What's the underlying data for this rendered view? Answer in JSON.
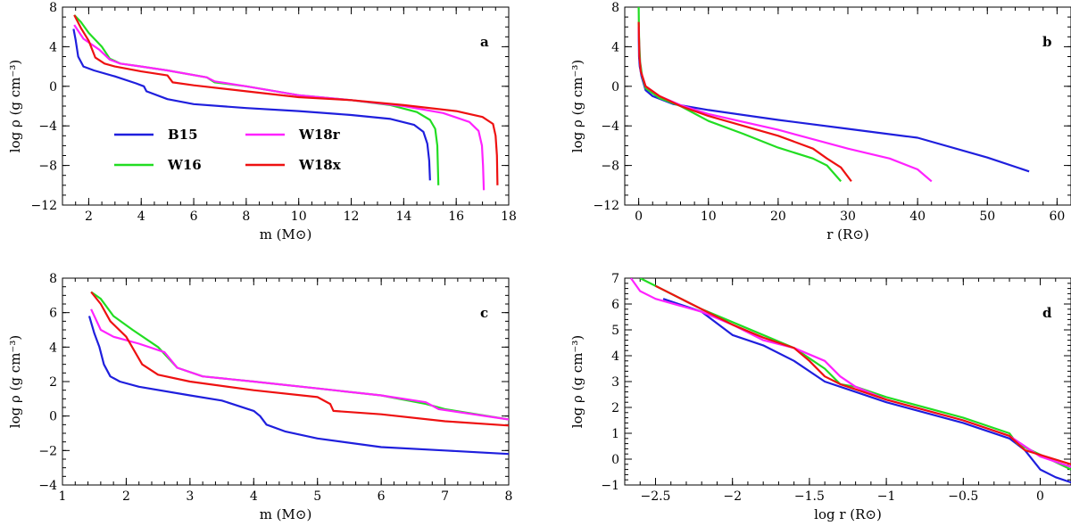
{
  "chart_data": [
    {
      "type": "line",
      "panel": "a",
      "xlabel": "m (M⊙)",
      "ylabel": "log ρ (g cm⁻³)",
      "xlim": [
        1,
        18
      ],
      "ylim": [
        -12,
        8
      ],
      "xticks": [
        2,
        4,
        6,
        8,
        10,
        12,
        14,
        16,
        18
      ],
      "yticks": [
        -12,
        -8,
        -4,
        0,
        4,
        8
      ],
      "legend": {
        "placement": "lower-left",
        "entries": [
          "B15",
          "W16",
          "W18r",
          "W18x"
        ]
      },
      "series": [
        {
          "name": "B15",
          "color": "#1f1fdd",
          "points": [
            [
              1.42,
              5.8
            ],
            [
              1.5,
              4.7
            ],
            [
              1.6,
              3.0
            ],
            [
              1.8,
              2.0
            ],
            [
              2.2,
              1.6
            ],
            [
              3.0,
              1.0
            ],
            [
              3.8,
              0.3
            ],
            [
              4.1,
              0.0
            ],
            [
              4.2,
              -0.5
            ],
            [
              5,
              -1.3
            ],
            [
              6,
              -1.8
            ],
            [
              8,
              -2.2
            ],
            [
              10,
              -2.5
            ],
            [
              12,
              -2.9
            ],
            [
              13.5,
              -3.3
            ],
            [
              14.4,
              -3.9
            ],
            [
              14.75,
              -4.6
            ],
            [
              14.9,
              -5.8
            ],
            [
              14.97,
              -7.5
            ],
            [
              15.0,
              -9.5
            ]
          ]
        },
        {
          "name": "W16",
          "color": "#22dd22",
          "points": [
            [
              1.45,
              7.2
            ],
            [
              1.7,
              6.5
            ],
            [
              2.0,
              5.4
            ],
            [
              2.5,
              4.0
            ],
            [
              2.8,
              2.8
            ],
            [
              3.2,
              2.3
            ],
            [
              4,
              2.0
            ],
            [
              5,
              1.6
            ],
            [
              6.5,
              0.9
            ],
            [
              6.8,
              0.4
            ],
            [
              8,
              0.0
            ],
            [
              10,
              -0.9
            ],
            [
              12,
              -1.4
            ],
            [
              13.5,
              -1.9
            ],
            [
              14.5,
              -2.6
            ],
            [
              15.0,
              -3.4
            ],
            [
              15.2,
              -4.3
            ],
            [
              15.28,
              -6.0
            ],
            [
              15.3,
              -8.0
            ],
            [
              15.32,
              -10.0
            ]
          ]
        },
        {
          "name": "W18r",
          "color": "#ff22ff",
          "points": [
            [
              1.45,
              6.2
            ],
            [
              1.8,
              4.8
            ],
            [
              2.4,
              3.7
            ],
            [
              2.8,
              2.7
            ],
            [
              3.2,
              2.3
            ],
            [
              4,
              2.0
            ],
            [
              5,
              1.6
            ],
            [
              6.5,
              0.9
            ],
            [
              6.8,
              0.5
            ],
            [
              8,
              0.0
            ],
            [
              10,
              -0.9
            ],
            [
              12,
              -1.4
            ],
            [
              14,
              -2.0
            ],
            [
              15.5,
              -2.7
            ],
            [
              16.5,
              -3.6
            ],
            [
              16.85,
              -4.5
            ],
            [
              16.98,
              -6.0
            ],
            [
              17.02,
              -8.0
            ],
            [
              17.05,
              -10.5
            ]
          ]
        },
        {
          "name": "W18x",
          "color": "#ee1111",
          "points": [
            [
              1.45,
              7.2
            ],
            [
              1.7,
              5.9
            ],
            [
              2.0,
              4.6
            ],
            [
              2.25,
              2.9
            ],
            [
              2.6,
              2.3
            ],
            [
              3,
              2.0
            ],
            [
              4,
              1.5
            ],
            [
              5,
              1.1
            ],
            [
              5.2,
              0.4
            ],
            [
              6,
              0.1
            ],
            [
              8,
              -0.5
            ],
            [
              10,
              -1.1
            ],
            [
              12,
              -1.4
            ],
            [
              14,
              -1.9
            ],
            [
              16,
              -2.5
            ],
            [
              17.0,
              -3.1
            ],
            [
              17.4,
              -3.8
            ],
            [
              17.5,
              -5.0
            ],
            [
              17.55,
              -7.0
            ],
            [
              17.57,
              -10.0
            ]
          ]
        }
      ]
    },
    {
      "type": "line",
      "panel": "b",
      "xlabel": "r (R⊙)",
      "ylabel": "log ρ (g cm⁻³)",
      "xlim": [
        -2,
        62
      ],
      "ylim": [
        -12,
        8
      ],
      "xticks": [
        0,
        10,
        20,
        30,
        40,
        50,
        60
      ],
      "yticks": [
        -12,
        -8,
        -4,
        0,
        4,
        8
      ],
      "series": [
        {
          "name": "B15",
          "color": "#1f1fdd",
          "points": [
            [
              0,
              6.0
            ],
            [
              0.05,
              3.0
            ],
            [
              0.15,
              2.0
            ],
            [
              0.4,
              1.0
            ],
            [
              1,
              -0.4
            ],
            [
              2,
              -1.0
            ],
            [
              5,
              -1.8
            ],
            [
              10,
              -2.4
            ],
            [
              20,
              -3.4
            ],
            [
              30,
              -4.3
            ],
            [
              40,
              -5.2
            ],
            [
              50,
              -7.2
            ],
            [
              56,
              -8.6
            ]
          ]
        },
        {
          "name": "W16",
          "color": "#22dd22",
          "points": [
            [
              0,
              8.0
            ],
            [
              0.05,
              5.0
            ],
            [
              0.2,
              2.5
            ],
            [
              0.5,
              1.0
            ],
            [
              1,
              -0.2
            ],
            [
              3,
              -1.2
            ],
            [
              6,
              -2.0
            ],
            [
              10,
              -3.5
            ],
            [
              15,
              -4.8
            ],
            [
              20,
              -6.2
            ],
            [
              25,
              -7.3
            ],
            [
              27,
              -8.0
            ],
            [
              29,
              -9.6
            ]
          ]
        },
        {
          "name": "W18r",
          "color": "#ff22ff",
          "points": [
            [
              0,
              6.0
            ],
            [
              0.1,
              3.0
            ],
            [
              0.3,
              1.5
            ],
            [
              1,
              0.0
            ],
            [
              3,
              -1.0
            ],
            [
              6,
              -1.9
            ],
            [
              10,
              -2.8
            ],
            [
              20,
              -4.4
            ],
            [
              30,
              -6.3
            ],
            [
              36,
              -7.3
            ],
            [
              40,
              -8.4
            ],
            [
              42,
              -9.6
            ]
          ]
        },
        {
          "name": "W18x",
          "color": "#ee1111",
          "points": [
            [
              0,
              6.5
            ],
            [
              0.1,
              3.0
            ],
            [
              0.3,
              1.5
            ],
            [
              1,
              0.0
            ],
            [
              3,
              -1.0
            ],
            [
              6,
              -2.0
            ],
            [
              10,
              -3.0
            ],
            [
              20,
              -5.0
            ],
            [
              25,
              -6.3
            ],
            [
              27,
              -7.3
            ],
            [
              29,
              -8.2
            ],
            [
              30.5,
              -9.6
            ]
          ]
        }
      ]
    },
    {
      "type": "line",
      "panel": "c",
      "xlabel": "m (M⊙)",
      "ylabel": "log ρ (g cm⁻³)",
      "xlim": [
        1,
        8
      ],
      "ylim": [
        -4,
        8
      ],
      "xticks": [
        1,
        2,
        3,
        4,
        5,
        6,
        7,
        8
      ],
      "yticks": [
        -4,
        -2,
        0,
        2,
        4,
        6,
        8
      ],
      "series": [
        {
          "name": "B15",
          "color": "#1f1fdd",
          "points": [
            [
              1.42,
              5.8
            ],
            [
              1.5,
              4.8
            ],
            [
              1.58,
              4.0
            ],
            [
              1.65,
              3.0
            ],
            [
              1.75,
              2.3
            ],
            [
              1.9,
              2.0
            ],
            [
              2.2,
              1.7
            ],
            [
              3,
              1.2
            ],
            [
              3.5,
              0.9
            ],
            [
              4,
              0.3
            ],
            [
              4.1,
              0.0
            ],
            [
              4.2,
              -0.5
            ],
            [
              4.5,
              -0.9
            ],
            [
              5,
              -1.3
            ],
            [
              6,
              -1.8
            ],
            [
              7,
              -2.0
            ],
            [
              8,
              -2.2
            ]
          ]
        },
        {
          "name": "W16",
          "color": "#22dd22",
          "points": [
            [
              1.45,
              7.2
            ],
            [
              1.6,
              6.8
            ],
            [
              1.8,
              5.8
            ],
            [
              2.1,
              5.0
            ],
            [
              2.5,
              4.0
            ],
            [
              2.8,
              2.8
            ],
            [
              3.2,
              2.3
            ],
            [
              4,
              2.0
            ],
            [
              5,
              1.6
            ],
            [
              6,
              1.2
            ],
            [
              6.7,
              0.7
            ],
            [
              7,
              0.4
            ],
            [
              8,
              -0.2
            ]
          ]
        },
        {
          "name": "W18r",
          "color": "#ff22ff",
          "points": [
            [
              1.45,
              6.2
            ],
            [
              1.6,
              5.0
            ],
            [
              1.8,
              4.6
            ],
            [
              2.2,
              4.2
            ],
            [
              2.6,
              3.7
            ],
            [
              2.8,
              2.8
            ],
            [
              3.2,
              2.3
            ],
            [
              4,
              2.0
            ],
            [
              5,
              1.6
            ],
            [
              6,
              1.2
            ],
            [
              6.7,
              0.8
            ],
            [
              6.9,
              0.4
            ],
            [
              8,
              -0.2
            ]
          ]
        },
        {
          "name": "W18x",
          "color": "#ee1111",
          "points": [
            [
              1.45,
              7.2
            ],
            [
              1.6,
              6.5
            ],
            [
              1.75,
              5.5
            ],
            [
              2.0,
              4.6
            ],
            [
              2.25,
              3.0
            ],
            [
              2.5,
              2.4
            ],
            [
              3,
              2.0
            ],
            [
              4,
              1.5
            ],
            [
              5,
              1.1
            ],
            [
              5.2,
              0.7
            ],
            [
              5.25,
              0.3
            ],
            [
              6,
              0.1
            ],
            [
              7,
              -0.3
            ],
            [
              8,
              -0.55
            ]
          ]
        }
      ]
    },
    {
      "type": "line",
      "panel": "d",
      "xlabel": "log r (R⊙)",
      "ylabel": "log ρ (g cm⁻³)",
      "xlim": [
        -2.7,
        0.2
      ],
      "ylim": [
        -1,
        7
      ],
      "xticks": [
        -2.5,
        -2,
        -1.5,
        -1,
        -0.5,
        0
      ],
      "xtick_labels": [
        "−2.5",
        "−2",
        "−1.5",
        "−1",
        "−0.5",
        "0"
      ],
      "yticks": [
        -1,
        0,
        1,
        2,
        3,
        4,
        5,
        6,
        7
      ],
      "series": [
        {
          "name": "B15",
          "color": "#1f1fdd",
          "points": [
            [
              -2.45,
              6.2
            ],
            [
              -2.2,
              5.7
            ],
            [
              -2.0,
              4.8
            ],
            [
              -1.8,
              4.4
            ],
            [
              -1.6,
              3.8
            ],
            [
              -1.4,
              3.0
            ],
            [
              -1.2,
              2.6
            ],
            [
              -1,
              2.2
            ],
            [
              -0.5,
              1.4
            ],
            [
              -0.2,
              0.8
            ],
            [
              -0.1,
              0.35
            ],
            [
              0.0,
              -0.4
            ],
            [
              0.1,
              -0.7
            ],
            [
              0.2,
              -0.9
            ]
          ]
        },
        {
          "name": "W16",
          "color": "#22dd22",
          "points": [
            [
              -2.6,
              7.0
            ],
            [
              -2.4,
              6.4
            ],
            [
              -2.2,
              5.8
            ],
            [
              -2.0,
              5.3
            ],
            [
              -1.8,
              4.8
            ],
            [
              -1.6,
              4.3
            ],
            [
              -1.4,
              3.5
            ],
            [
              -1.3,
              2.9
            ],
            [
              -1.2,
              2.8
            ],
            [
              -1,
              2.4
            ],
            [
              -0.5,
              1.6
            ],
            [
              -0.2,
              1.0
            ],
            [
              -0.15,
              0.6
            ],
            [
              0.2,
              -0.4
            ]
          ]
        },
        {
          "name": "W18r",
          "color": "#ff22ff",
          "points": [
            [
              -2.66,
              7.0
            ],
            [
              -2.6,
              6.5
            ],
            [
              -2.5,
              6.2
            ],
            [
              -2.2,
              5.7
            ],
            [
              -2.0,
              5.2
            ],
            [
              -1.8,
              4.6
            ],
            [
              -1.6,
              4.3
            ],
            [
              -1.4,
              3.8
            ],
            [
              -1.3,
              3.2
            ],
            [
              -1.2,
              2.8
            ],
            [
              -1,
              2.3
            ],
            [
              -0.5,
              1.5
            ],
            [
              -0.2,
              0.9
            ],
            [
              0,
              0.1
            ],
            [
              0.2,
              -0.3
            ]
          ]
        },
        {
          "name": "W18x",
          "color": "#ee1111",
          "points": [
            [
              -2.5,
              6.7
            ],
            [
              -2.3,
              6.1
            ],
            [
              -2.0,
              5.2
            ],
            [
              -1.8,
              4.7
            ],
            [
              -1.6,
              4.3
            ],
            [
              -1.5,
              3.8
            ],
            [
              -1.4,
              3.2
            ],
            [
              -1.3,
              2.9
            ],
            [
              -1.2,
              2.7
            ],
            [
              -1,
              2.3
            ],
            [
              -0.5,
              1.5
            ],
            [
              -0.2,
              0.9
            ],
            [
              -0.1,
              0.35
            ],
            [
              0.2,
              -0.2
            ]
          ]
        }
      ]
    }
  ]
}
